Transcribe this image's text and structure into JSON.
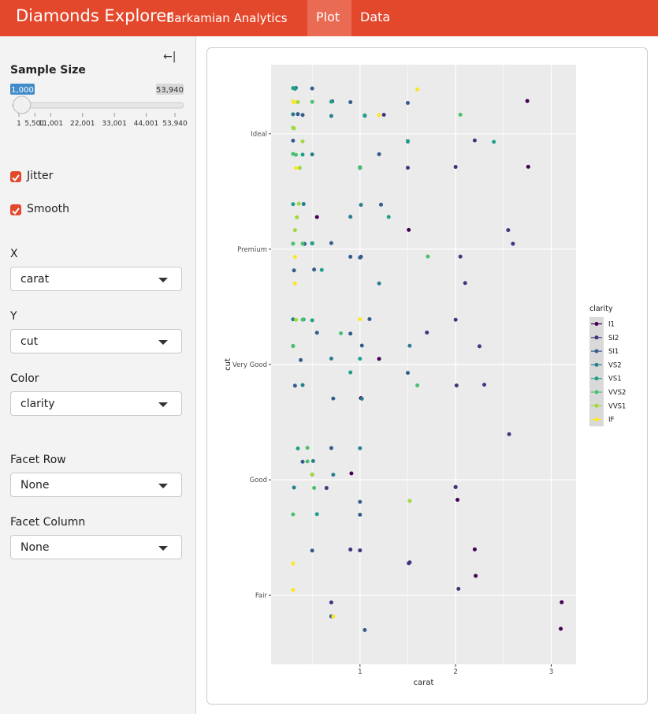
{
  "header": {
    "title": "Diamonds Explorer",
    "subtitle": "Barkamian Analytics",
    "tabs": [
      {
        "label": "Plot",
        "active": true
      },
      {
        "label": "Data",
        "active": false
      }
    ]
  },
  "sidebar": {
    "sample_size": {
      "label": "Sample Size",
      "value": 1000,
      "value_label": "1,000",
      "ticks": [
        1,
        {
          "value": 5501,
          "label": "5,501"
        },
        {
          "value": 11001,
          "label": "11,001"
        },
        {
          "value": 22001,
          "label": "22,001"
        },
        {
          "value": 33001,
          "label": "33,001"
        },
        {
          "value": 44001,
          "label": "44,001"
        },
        {
          "value": 53940,
          "label": "53,940"
        }
      ]
    },
    "checkboxes": [
      {
        "label": "Jitter",
        "checked": true
      },
      {
        "label": "Smooth",
        "checked": true
      }
    ],
    "selects": [
      {
        "label": "X",
        "value": "carat"
      },
      {
        "label": "Y",
        "value": "cut"
      },
      {
        "label": "Color",
        "value": "clarity"
      },
      {
        "label": "Facet Row",
        "value": "None"
      },
      {
        "label": "Facet Column",
        "value": "None"
      }
    ]
  },
  "chart_data": {
    "type": "scatter",
    "x_label": "carat",
    "y_label": "cut",
    "categories": [
      "Fair",
      "Good",
      "Very Good",
      "Premium",
      "Ideal"
    ],
    "xlim": [
      0.07,
      3.26
    ],
    "xticks": [
      1,
      2,
      3
    ],
    "grid": true,
    "legend_title": "clarity",
    "series": [
      {
        "name": "I1",
        "color": "#440154",
        "x": [
          2.75,
          2.76,
          3.1,
          3.11,
          2.21,
          2.2,
          2.02,
          0.91,
          1.2,
          0.55,
          1.01,
          2.0,
          1.51
        ],
        "cut": [
          "Ideal",
          "Ideal",
          "Fair",
          "Fair",
          "Fair",
          "Fair",
          "Good",
          "Good",
          "Very Good",
          "Premium",
          "Very Good",
          "Good",
          "Premium"
        ]
      },
      {
        "name": "SI2",
        "color": "#46337e",
        "x": [
          2.0,
          2.2,
          2.05,
          2.55,
          2.56,
          2.3,
          2.03,
          1.52,
          1.51,
          2.1,
          2.0,
          1.25,
          0.9,
          1.0,
          2.01,
          2.6,
          1.7,
          1.5,
          0.7,
          0.65,
          2.25,
          2.0
        ],
        "cut": [
          "Ideal",
          "Ideal",
          "Premium",
          "Premium",
          "Good",
          "Very Good",
          "Fair",
          "Fair",
          "Fair",
          "Premium",
          "Good",
          "Ideal",
          "Fair",
          "Fair",
          "Very Good",
          "Premium",
          "Very Good",
          "Ideal",
          "Fair",
          "Good",
          "Very Good",
          "Very Good"
        ]
      },
      {
        "name": "SI1",
        "color": "#365c8d",
        "x": [
          0.3,
          0.35,
          0.4,
          0.5,
          0.52,
          0.7,
          0.71,
          0.9,
          1.0,
          1.01,
          1.02,
          1.1,
          1.2,
          0.31,
          0.42,
          0.55,
          0.72,
          0.9,
          1.0,
          1.05,
          1.22,
          0.32,
          0.5,
          0.7,
          0.9,
          1.0,
          1.5,
          0.4,
          0.5,
          0.7,
          1.0,
          0.38,
          1.5,
          1.05
        ],
        "cut": [
          "Ideal",
          "Ideal",
          "Ideal",
          "Ideal",
          "Premium",
          "Premium",
          "Ideal",
          "Ideal",
          "Ideal",
          "Premium",
          "Very Good",
          "Very Good",
          "Ideal",
          "Premium",
          "Premium",
          "Very Good",
          "Very Good",
          "Premium",
          "Premium",
          "Ideal",
          "Premium",
          "Very Good",
          "Good",
          "Good",
          "Very Good",
          "Good",
          "Very Good",
          "Good",
          "Fair",
          "Fair",
          "Good",
          "Very Good",
          "Ideal",
          "Fair"
        ]
      },
      {
        "name": "VS2",
        "color": "#277f8e",
        "x": [
          0.3,
          0.33,
          0.41,
          0.5,
          0.7,
          0.9,
          1.0,
          1.02,
          1.5,
          1.52,
          0.3,
          0.4,
          0.5,
          0.72,
          1.0,
          1.2,
          0.31,
          0.51,
          0.7,
          1.01
        ],
        "cut": [
          "Ideal",
          "Ideal",
          "Premium",
          "Ideal",
          "Very Good",
          "Premium",
          "Ideal",
          "Very Good",
          "Ideal",
          "Very Good",
          "Very Good",
          "Very Good",
          "Premium",
          "Good",
          "Good",
          "Premium",
          "Good",
          "Good",
          "Ideal",
          "Premium"
        ]
      },
      {
        "name": "VS1",
        "color": "#1fa187",
        "x": [
          0.3,
          0.32,
          0.4,
          0.5,
          0.7,
          1.0,
          1.5,
          2.4,
          0.3,
          0.41,
          0.6,
          1.0,
          1.3,
          0.35,
          0.55,
          0.9,
          1.05,
          0.3,
          0.5
        ],
        "cut": [
          "Ideal",
          "Ideal",
          "Ideal",
          "Premium",
          "Ideal",
          "Ideal",
          "Ideal",
          "Ideal",
          "Very Good",
          "Very Good",
          "Premium",
          "Very Good",
          "Premium",
          "Good",
          "Good",
          "Very Good",
          "Ideal",
          "Premium",
          "Very Good"
        ]
      },
      {
        "name": "VVS2",
        "color": "#4ac16d",
        "x": [
          0.3,
          0.33,
          0.4,
          0.5,
          1.0,
          1.71,
          2.05,
          0.3,
          0.4,
          1.6,
          0.3,
          0.45,
          0.8,
          0.3,
          0.52,
          0.45
        ],
        "cut": [
          "Ideal",
          "Ideal",
          "Premium",
          "Ideal",
          "Ideal",
          "Premium",
          "Ideal",
          "Very Good",
          "Very Good",
          "Very Good",
          "Premium",
          "Good",
          "Very Good",
          "Good",
          "Good",
          "Good"
        ]
      },
      {
        "name": "VVS1",
        "color": "#9fda3a",
        "x": [
          0.3,
          0.31,
          0.35,
          0.37,
          0.4,
          0.32,
          0.36,
          0.33,
          1.52,
          0.5,
          0.34
        ],
        "cut": [
          "Ideal",
          "Ideal",
          "Ideal",
          "Ideal",
          "Ideal",
          "Premium",
          "Premium",
          "Very Good",
          "Good",
          "Good",
          "Premium"
        ]
      },
      {
        "name": "IF",
        "color": "#fde725",
        "x": [
          0.3,
          0.31,
          0.33,
          0.32,
          1.2,
          1.0,
          1.6,
          0.72,
          0.3,
          0.3,
          0.32
        ],
        "cut": [
          "Ideal",
          "Ideal",
          "Ideal",
          "Premium",
          "Ideal",
          "Very Good",
          "Ideal",
          "Fair",
          "Fair",
          "Fair",
          "Premium"
        ]
      }
    ]
  }
}
